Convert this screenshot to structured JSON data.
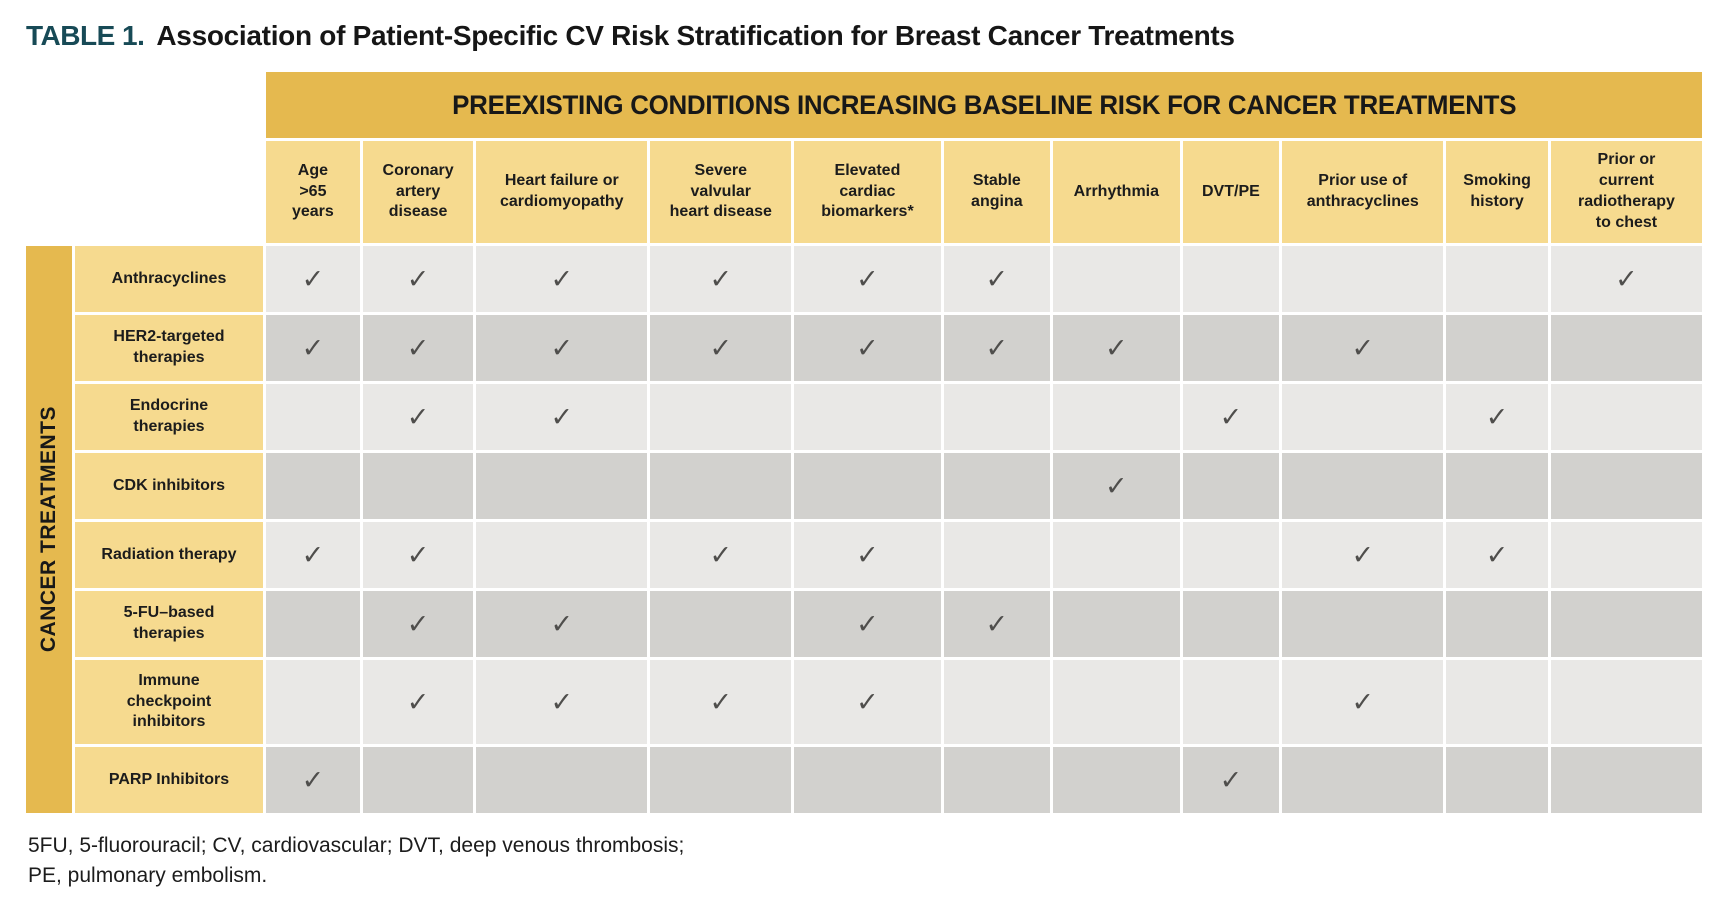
{
  "title": {
    "prefix": "TABLE 1.",
    "text": "Association of Patient-Specific CV Risk Stratification for Breast Cancer Treatments"
  },
  "table": {
    "top_header": "PREEXISTING CONDITIONS INCREASING BASELINE RISK FOR CANCER TREATMENTS",
    "left_header": "CANCER TREATMENTS",
    "check_glyph": "✓",
    "colors": {
      "band_gold": "#e5b94f",
      "light_gold": "#f6da8f",
      "cell_light_gray": "#e9e8e6",
      "cell_dark_gray": "#d2d1ce",
      "check": "#4f4e4c",
      "title_prefix": "#174a56"
    },
    "columns": [
      "Age\n>65\nyears",
      "Coronary\nartery\ndisease",
      "Heart failure or\ncardiomyopathy",
      "Severe\nvalvular\nheart disease",
      "Elevated\ncardiac\nbiomarkers*",
      "Stable\nangina",
      "Arrhythmia",
      "DVT/PE",
      "Prior use of\nanthracyclines",
      "Smoking\nhistory",
      "Prior or\ncurrent\nradiotherapy\nto chest"
    ],
    "rows": [
      {
        "label": "Anthracyclines",
        "checks": [
          1,
          1,
          1,
          1,
          1,
          1,
          0,
          0,
          0,
          0,
          1
        ]
      },
      {
        "label": "HER2-targeted\ntherapies",
        "checks": [
          1,
          1,
          1,
          1,
          1,
          1,
          1,
          0,
          1,
          0,
          0
        ]
      },
      {
        "label": "Endocrine\ntherapies",
        "checks": [
          0,
          1,
          1,
          0,
          0,
          0,
          0,
          1,
          0,
          1,
          0
        ]
      },
      {
        "label": "CDK inhibitors",
        "checks": [
          0,
          0,
          0,
          0,
          0,
          0,
          1,
          0,
          0,
          0,
          0
        ]
      },
      {
        "label": "Radiation therapy",
        "checks": [
          1,
          1,
          0,
          1,
          1,
          0,
          0,
          0,
          1,
          1,
          0
        ]
      },
      {
        "label": "5-FU–based\ntherapies",
        "checks": [
          0,
          1,
          1,
          0,
          1,
          1,
          0,
          0,
          0,
          0,
          0
        ]
      },
      {
        "label": "Immune\ncheckpoint\ninhibitors",
        "checks": [
          0,
          1,
          1,
          1,
          1,
          0,
          0,
          0,
          1,
          0,
          0
        ]
      },
      {
        "label": "PARP Inhibitors",
        "checks": [
          1,
          0,
          0,
          0,
          0,
          0,
          0,
          1,
          0,
          0,
          0
        ]
      }
    ]
  },
  "footnote": {
    "line1": "5FU, 5-fluorouracil; CV, cardiovascular; DVT, deep venous thrombosis;",
    "line2": "PE, pulmonary embolism."
  }
}
